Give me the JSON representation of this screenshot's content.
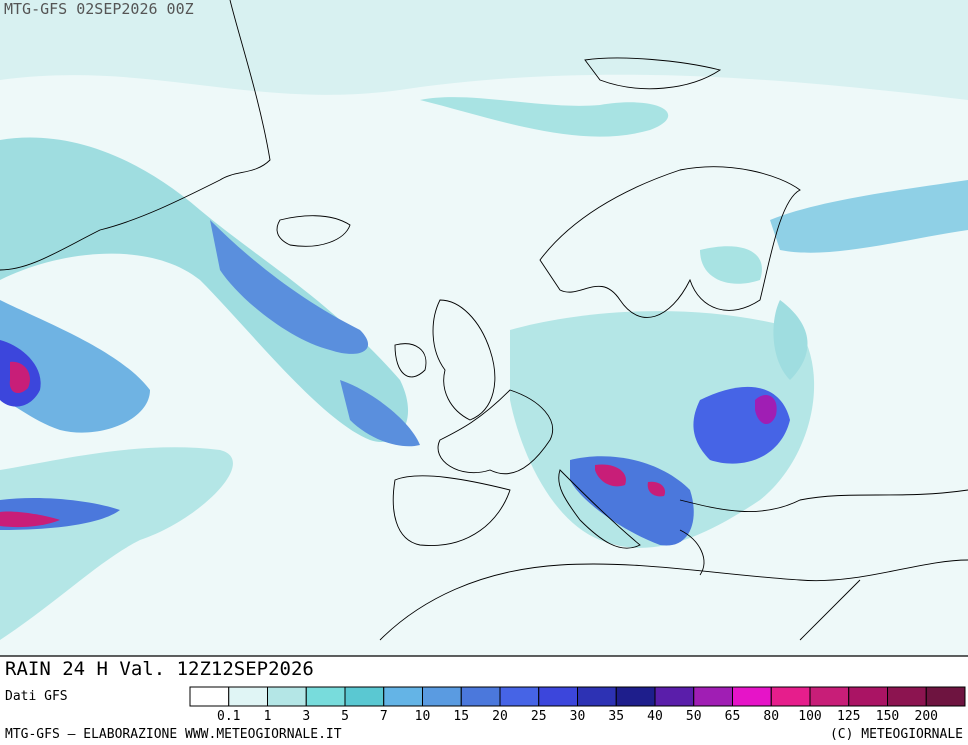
{
  "header": {
    "title": "MTG-GFS 02SEP2026 00Z"
  },
  "caption": "RAIN 24 H Val. 12Z12SEP2026",
  "source": "Dati GFS",
  "legend": {
    "levels": [
      0.1,
      1,
      3,
      5,
      7,
      10,
      15,
      20,
      25,
      30,
      35,
      40,
      50,
      65,
      80,
      100,
      125,
      150,
      200
    ],
    "colors": [
      "#ffffff",
      "#e0f5f5",
      "#b4e6e6",
      "#78dcdc",
      "#5ac8d2",
      "#64b4e6",
      "#5a9be1",
      "#4b78dc",
      "#4664e6",
      "#3c46dc",
      "#2d32b4",
      "#1e1e8c",
      "#5a1eaa",
      "#a01eb4",
      "#e614c8",
      "#e61e8c",
      "#c81e78",
      "#aa1464",
      "#8c1450",
      "#6e1440"
    ]
  },
  "footer": {
    "left": "MTG-GFS — ELABORAZIONE WWW.METEOGIORNALE.IT",
    "right": "(C) METEOGIORNALE"
  }
}
